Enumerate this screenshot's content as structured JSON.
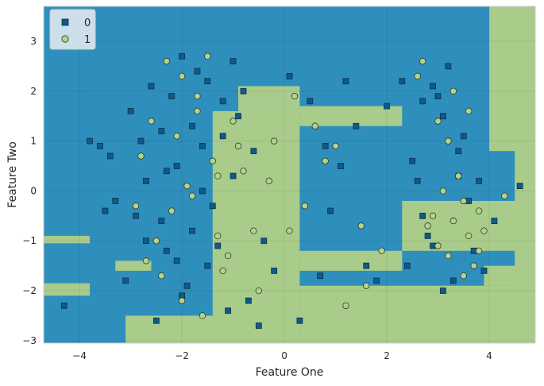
{
  "chart_data": {
    "type": "scatter",
    "title": "",
    "xlabel": "Feature One",
    "ylabel": "Feature Two",
    "xlim": [
      -4.7,
      4.9
    ],
    "ylim": [
      -3.05,
      3.7
    ],
    "x_ticks": [
      -4,
      -2,
      0,
      2,
      4
    ],
    "y_ticks": [
      -3,
      -2,
      -1,
      0,
      1,
      2,
      3
    ],
    "grid": true,
    "legend_position": "top-left",
    "background": "decision-regions",
    "region_colors": {
      "0": "#2e8fbd",
      "1": "#a9cc8a"
    },
    "series": [
      {
        "name": "0",
        "marker": "square",
        "color": "#0b5b8f",
        "x": [
          -2.1,
          -1.8,
          -2.4,
          -1.5,
          -2.7,
          -1.2,
          -2.0,
          -2.9,
          -1.6,
          -2.3,
          -0.9,
          -1.4,
          -2.6,
          -3.1,
          -1.1,
          -0.6,
          -2.2,
          -1.7,
          -0.4,
          -2.8,
          -3.3,
          -1.9,
          -1.0,
          -2.5,
          -0.8,
          -3.0,
          -1.3,
          -2.0,
          -0.2,
          -1.6,
          -2.4,
          -3.4,
          -1.8,
          -0.7,
          -2.1,
          -1.5,
          -2.7,
          -3.6,
          -1.2,
          -2.3,
          3.1,
          3.4,
          2.7,
          3.7,
          2.9,
          3.3,
          2.6,
          3.0,
          3.6,
          2.4,
          3.2,
          2.8,
          3.5,
          2.5,
          3.9,
          2.3,
          3.1,
          2.7,
          3.4,
          2.9,
          0.5,
          0.9,
          1.4,
          1.8,
          0.7,
          1.2,
          0.3,
          1.6,
          2.0,
          0.8,
          -4.3,
          -3.8,
          -3.5,
          3.8,
          4.1,
          4.6,
          -1.0,
          -0.5,
          0.1,
          1.1
        ],
        "y": [
          0.5,
          -0.8,
          1.2,
          -1.5,
          0.2,
          1.8,
          -2.1,
          -0.5,
          0.9,
          -1.2,
          1.5,
          -0.3,
          2.1,
          -1.8,
          -2.4,
          0.8,
          1.9,
          2.4,
          -1.0,
          1.0,
          -0.2,
          -1.9,
          0.3,
          -2.6,
          2.0,
          1.6,
          -1.1,
          2.7,
          -1.6,
          0.0,
          -0.6,
          0.7,
          1.3,
          -2.2,
          -1.4,
          2.2,
          -1.0,
          0.9,
          1.1,
          0.4,
          1.5,
          0.8,
          -0.5,
          -1.2,
          2.1,
          -1.8,
          0.2,
          1.9,
          -0.2,
          -1.5,
          2.5,
          -0.9,
          1.1,
          0.6,
          -1.6,
          2.2,
          -2.0,
          1.8,
          0.3,
          -1.1,
          1.8,
          -0.4,
          1.3,
          -1.8,
          -1.7,
          2.2,
          -2.6,
          -1.5,
          1.7,
          0.9,
          -2.3,
          1.0,
          -0.4,
          0.2,
          -0.6,
          0.1,
          2.6,
          -2.7,
          2.3,
          0.5
        ]
      },
      {
        "name": "1",
        "marker": "circle",
        "color": "#b5d18f",
        "x": [
          -1.9,
          -2.2,
          -1.4,
          -2.6,
          -1.1,
          -1.7,
          -2.4,
          -0.8,
          -2.0,
          -1.3,
          -2.8,
          -0.5,
          -1.6,
          -2.1,
          -1.0,
          -2.5,
          -0.3,
          -1.8,
          -2.3,
          -1.2,
          -0.6,
          -2.7,
          -1.5,
          -0.9,
          -2.0,
          -1.3,
          -0.2,
          -2.9,
          -1.7,
          0.1,
          3.3,
          3.6,
          3.0,
          3.8,
          3.2,
          3.5,
          2.8,
          3.1,
          3.7,
          2.9,
          3.4,
          3.9,
          2.6,
          3.3,
          3.6,
          3.0,
          3.8,
          2.7,
          3.2,
          3.5,
          1.0,
          1.5,
          0.6,
          1.9,
          0.4,
          1.2,
          0.8,
          1.6,
          0.2,
          4.3
        ],
        "y": [
          0.1,
          -0.4,
          0.6,
          1.4,
          -1.3,
          1.9,
          -1.7,
          0.4,
          2.3,
          -0.9,
          0.7,
          -2.0,
          -2.5,
          1.1,
          1.4,
          -1.0,
          0.2,
          -0.1,
          2.6,
          -1.6,
          -0.8,
          -1.4,
          2.7,
          0.9,
          -2.2,
          0.3,
          1.0,
          -0.3,
          1.6,
          -0.8,
          -0.6,
          -0.9,
          -1.1,
          -0.4,
          -1.3,
          -0.2,
          -0.7,
          0.0,
          -1.5,
          -0.5,
          0.3,
          -0.8,
          2.3,
          2.0,
          1.6,
          1.4,
          -1.2,
          2.6,
          1.0,
          -1.7,
          0.9,
          -0.7,
          1.3,
          -1.2,
          -0.3,
          -2.3,
          0.6,
          -1.9,
          1.9,
          -0.1
        ]
      }
    ]
  }
}
